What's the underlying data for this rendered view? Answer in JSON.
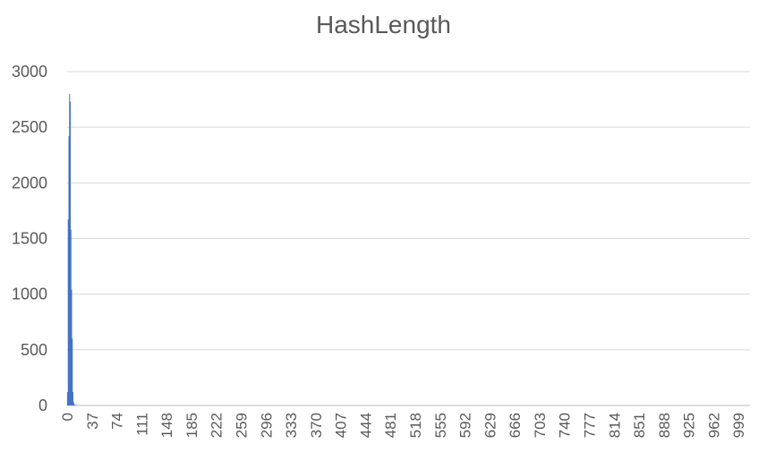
{
  "chart_data": {
    "type": "bar",
    "title": "HashLength",
    "xlabel": "",
    "ylabel": "",
    "ylim": [
      0,
      3000
    ],
    "yticks": [
      0,
      500,
      1000,
      1500,
      2000,
      2500,
      3000
    ],
    "xlim": [
      0,
      1016
    ],
    "xticks": [
      0,
      37,
      74,
      111,
      148,
      185,
      222,
      259,
      296,
      333,
      370,
      407,
      444,
      481,
      518,
      555,
      592,
      629,
      666,
      703,
      740,
      777,
      814,
      851,
      888,
      925,
      962,
      999
    ],
    "grid": true,
    "legend": "none",
    "bar_color": "#4472C4",
    "x": [
      0,
      1,
      2,
      3,
      4,
      5,
      6,
      7,
      8,
      9,
      10,
      11,
      12,
      13,
      14,
      15
    ],
    "values": [
      120,
      1670,
      2420,
      2800,
      2730,
      1580,
      1040,
      600,
      120,
      30,
      10,
      5,
      3,
      2,
      1,
      1
    ]
  }
}
